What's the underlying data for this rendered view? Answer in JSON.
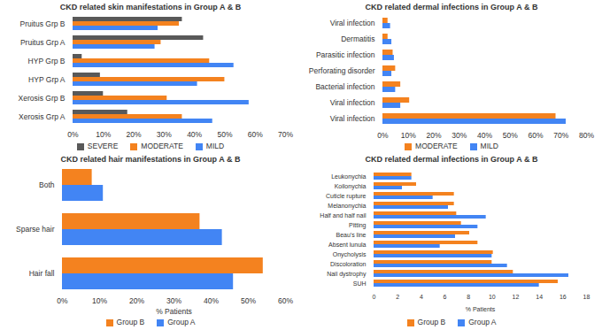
{
  "chart_data": [
    {
      "type": "bar",
      "orientation": "horizontal",
      "title": "CKD related skin manifestations in Group A & B",
      "categories": [
        "Pruitus Grp B",
        "Pruitus Grp A",
        "HYP Grp B",
        "HYP Grp A",
        "Xerosis Grp B",
        "Xerosis Grp A"
      ],
      "series": [
        {
          "name": "SEVERE",
          "color": "#595959",
          "values": [
            36,
            43,
            3,
            9,
            10,
            18
          ]
        },
        {
          "name": "MODERATE",
          "color": "#f4821f",
          "values": [
            35,
            29,
            45,
            50,
            31,
            36
          ]
        },
        {
          "name": "MILD",
          "color": "#4285f4",
          "values": [
            28,
            27,
            53,
            41,
            58,
            46
          ]
        }
      ],
      "xlim": [
        0,
        70
      ],
      "xticks": [
        {
          "value": 0,
          "label": "0%"
        },
        {
          "value": 10,
          "label": "10%"
        },
        {
          "value": 20,
          "label": "20%"
        },
        {
          "value": 30,
          "label": "30%"
        },
        {
          "value": 40,
          "label": "40%"
        },
        {
          "value": 50,
          "label": "50%"
        },
        {
          "value": 60,
          "label": "60%"
        },
        {
          "value": 70,
          "label": "70%"
        }
      ],
      "grid": false,
      "legend": "bottom"
    },
    {
      "type": "bar",
      "orientation": "horizontal",
      "title": "CKD related dermal infections in Group A & B",
      "categories": [
        "Viral infection",
        "Dermatitis",
        "Parasitic infection",
        "Perforating disorder",
        "Bacterial infection",
        "Viral infection",
        "Viral infection"
      ],
      "series": [
        {
          "name": "MODERATE",
          "color": "#f4821f",
          "values": [
            2,
            2,
            4,
            5,
            7,
            10.5,
            68
          ]
        },
        {
          "name": "MILD",
          "color": "#4285f4",
          "values": [
            3,
            3.5,
            4.5,
            3.5,
            5,
            7,
            72
          ]
        }
      ],
      "xlim": [
        0,
        80
      ],
      "xticks": [
        {
          "value": 0,
          "label": "0%"
        },
        {
          "value": 10,
          "label": "10%"
        },
        {
          "value": 20,
          "label": "20%"
        },
        {
          "value": 30,
          "label": "30%"
        },
        {
          "value": 40,
          "label": "40%"
        },
        {
          "value": 50,
          "label": "50%"
        },
        {
          "value": 60,
          "label": "60%"
        },
        {
          "value": 70,
          "label": "70%"
        },
        {
          "value": 80,
          "label": "80%"
        }
      ],
      "grid": false,
      "legend": "bottom"
    },
    {
      "type": "bar",
      "orientation": "horizontal",
      "title": "CKD related hair manifestations in Group A & B",
      "categories": [
        "Both",
        "Sparse hair",
        "Hair fall"
      ],
      "series": [
        {
          "name": "Group B",
          "color": "#f4821f",
          "values": [
            8,
            37,
            54
          ]
        },
        {
          "name": "Group A",
          "color": "#4285f4",
          "values": [
            11,
            43,
            46
          ]
        }
      ],
      "xlim": [
        0,
        60
      ],
      "xticks": [
        {
          "value": 0,
          "label": "0%"
        },
        {
          "value": 10,
          "label": "10%"
        },
        {
          "value": 20,
          "label": "20%"
        },
        {
          "value": 30,
          "label": "30%"
        },
        {
          "value": 40,
          "label": "40%"
        },
        {
          "value": 50,
          "label": "50%"
        },
        {
          "value": 60,
          "label": "60%"
        }
      ],
      "xlabel": "% Patients",
      "grid": false,
      "legend": "bottom"
    },
    {
      "type": "bar",
      "orientation": "horizontal",
      "title": "CKD related dermal infections in Group A & B",
      "categories": [
        "Leukonychia",
        "Koilonychia",
        "Cuticle rupture",
        "Melanonychia",
        "Half and half nail",
        "Pitting",
        "Beau's line",
        "Absent lunula",
        "Onycholysis",
        "Discoloration",
        "Nail dystrophy",
        "SUH"
      ],
      "series": [
        {
          "name": "Group B",
          "color": "#f4821f",
          "values": [
            3.2,
            3.6,
            6.8,
            6.8,
            7,
            7.4,
            8.1,
            8.8,
            10.1,
            10,
            11.8,
            15.6
          ]
        },
        {
          "name": "Group A",
          "color": "#4285f4",
          "values": [
            3.2,
            2.4,
            5,
            6.3,
            9.5,
            8.8,
            6.9,
            5.6,
            10,
            11.3,
            16.5,
            14
          ]
        }
      ],
      "xlim": [
        0,
        18
      ],
      "xticks": [
        0,
        2,
        4,
        6,
        8,
        10,
        12,
        14,
        16,
        18
      ],
      "xlabel": "% Patients",
      "grid": false,
      "legend": "bottom"
    }
  ]
}
